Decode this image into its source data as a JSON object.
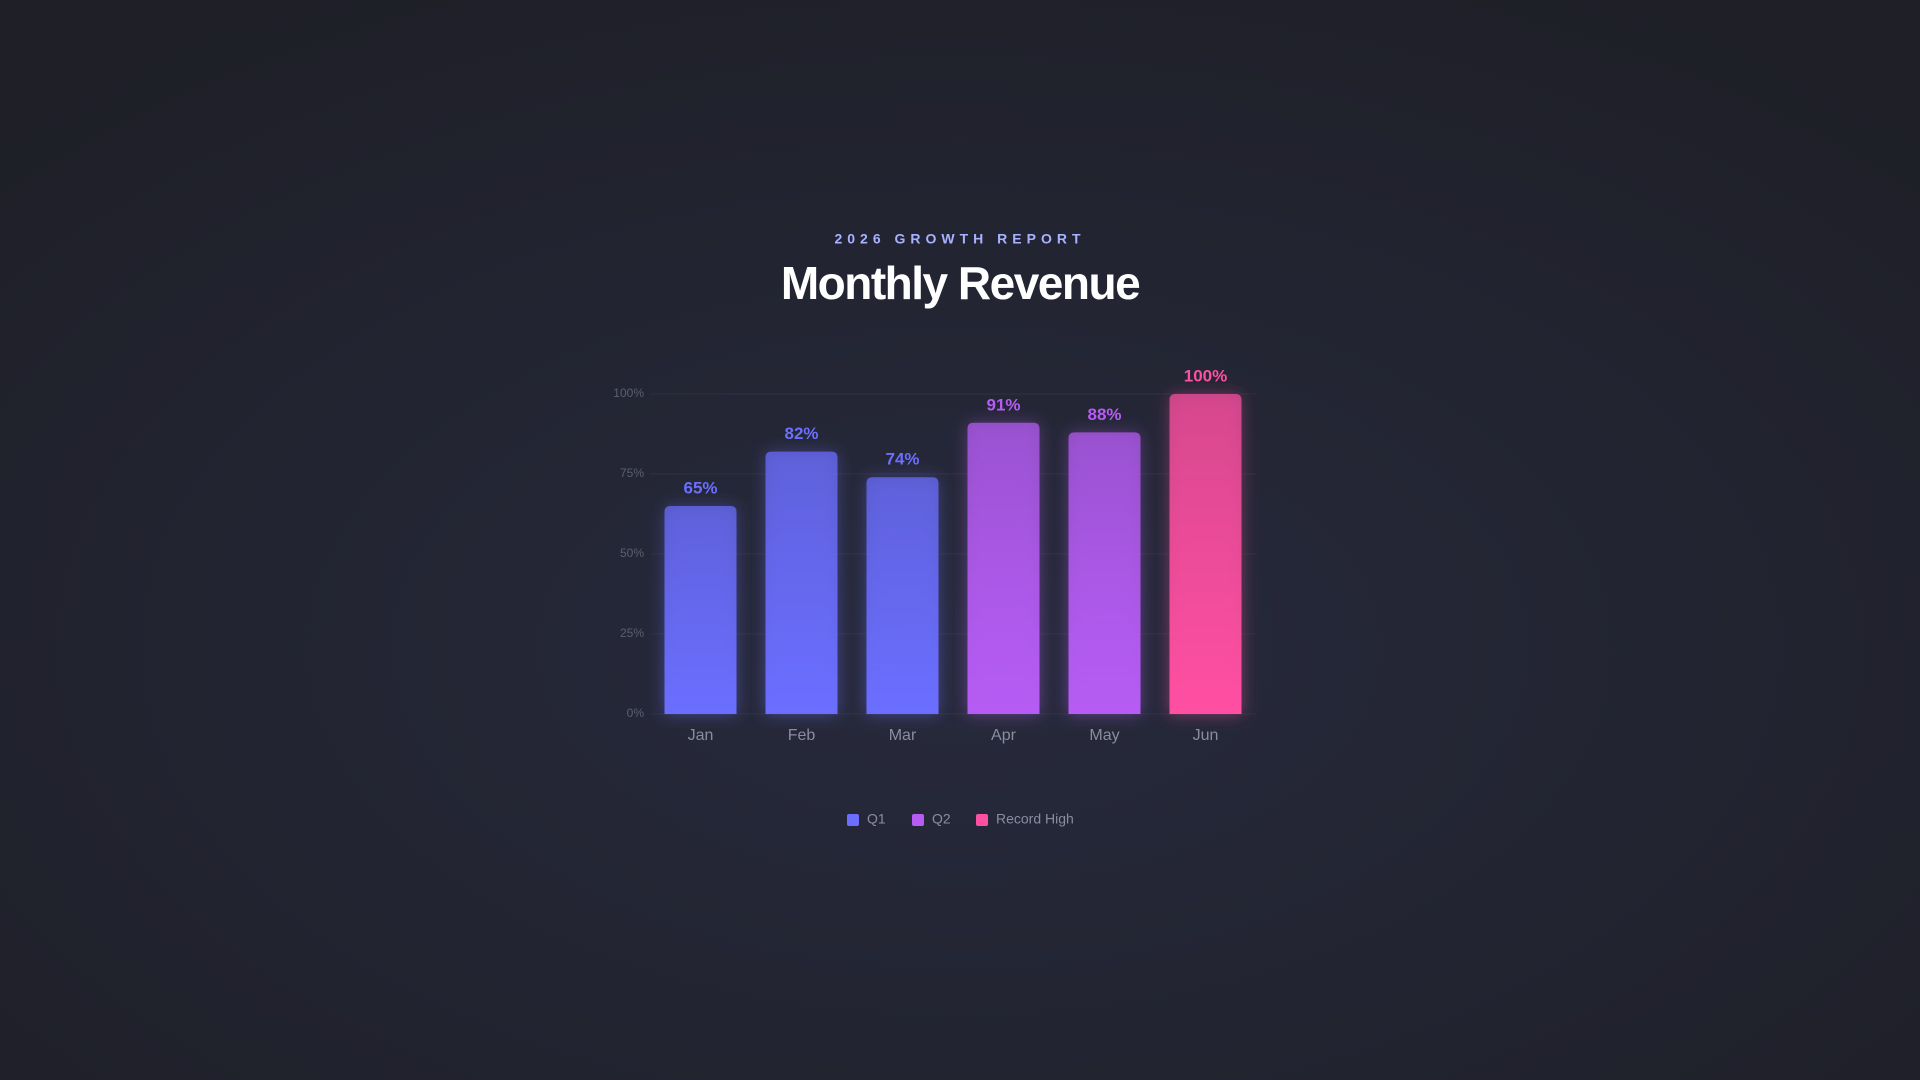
{
  "chart_data": {
    "type": "bar",
    "subtitle": "2026 GROWTH REPORT",
    "title": "Monthly Revenue",
    "categories": [
      "Jan",
      "Feb",
      "Mar",
      "Apr",
      "May",
      "Jun"
    ],
    "series": [
      {
        "name": "Q1",
        "color": "#6b6eff",
        "values": [
          65,
          82,
          74,
          null,
          null,
          null
        ],
        "value_labels": [
          "65%",
          "82%",
          "74%",
          null,
          null,
          null
        ]
      },
      {
        "name": "Q2",
        "color": "#b65cf5",
        "values": [
          null,
          null,
          null,
          91,
          88,
          null
        ],
        "value_labels": [
          null,
          null,
          null,
          "91%",
          "88%",
          null
        ]
      },
      {
        "name": "Record High",
        "color": "#ff4fa3",
        "values": [
          null,
          null,
          null,
          null,
          null,
          100
        ],
        "value_labels": [
          null,
          null,
          null,
          null,
          null,
          "100%"
        ]
      }
    ],
    "ylim": [
      0,
      100
    ],
    "yticks": [
      {
        "value": 0,
        "label": "0%"
      },
      {
        "value": 25,
        "label": "25%"
      },
      {
        "value": 50,
        "label": "50%"
      },
      {
        "value": 75,
        "label": "75%"
      },
      {
        "value": 100,
        "label": "100%"
      }
    ],
    "grid": true,
    "legend": "bottom"
  }
}
